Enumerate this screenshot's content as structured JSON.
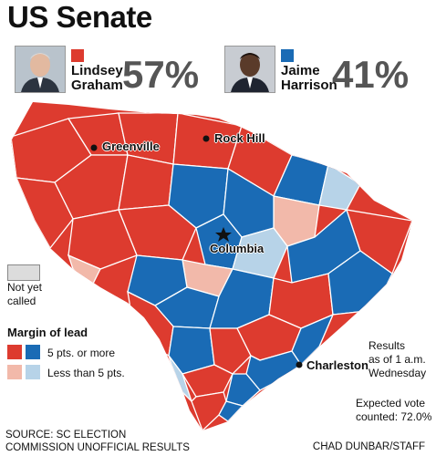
{
  "title": "US Senate",
  "candidates": [
    {
      "first": "Lindsey",
      "last": "Graham",
      "percent": "57%",
      "color": "#dd3b2f",
      "photo_icon": "graham-portrait"
    },
    {
      "first": "Jaime",
      "last": "Harrison",
      "percent": "41%",
      "color": "#1a6bb5",
      "photo_icon": "harrison-portrait"
    }
  ],
  "cities": {
    "greenville": "Greenville",
    "rock_hill": "Rock Hill",
    "columbia": "Columbia",
    "charleston": "Charleston"
  },
  "legend": {
    "not_yet_called": [
      "Not yet",
      "called"
    ],
    "not_yet_called_color": "#dcdcdc",
    "margin_title": "Margin of lead",
    "strong_label": "5 pts. or more",
    "weak_label": "Less than 5 pts.",
    "colors": {
      "rep_strong": "#dd3b2f",
      "dem_strong": "#1a6bb5",
      "rep_weak": "#f2b9aa",
      "dem_weak": "#b7d3e8"
    }
  },
  "results_note": [
    "Results",
    "as of 1 a.m.",
    "Wednesday"
  ],
  "expected_note": [
    "Expected vote",
    "counted: 72.0%"
  ],
  "source": [
    "SOURCE: SC ELECTION",
    "COMMISSION UNOFFICIAL RESULTS"
  ],
  "credit": "CHAD DUNBAR/STAFF"
}
